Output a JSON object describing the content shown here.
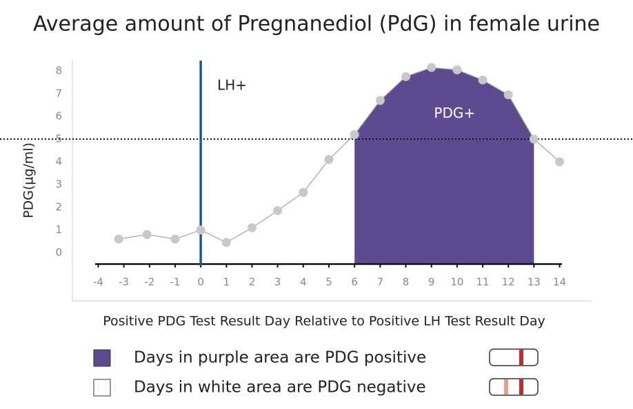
{
  "chart_data": {
    "type": "line",
    "title": "Average amount of Pregnanediol (PdG) in female urine",
    "x_label": "Positive PDG Test Result Day Relative to Positive LH Test Result Day",
    "y_label": "PDG(µg/ml)",
    "x": [
      -3.2,
      -2.1,
      -1,
      0,
      1,
      2,
      3,
      4,
      5,
      6,
      7,
      8,
      9,
      10,
      11,
      12,
      13,
      14
    ],
    "series": [
      {
        "color": "#aaaaaa",
        "marker_color": "#c8c8c8",
        "values": [
          0.6,
          0.8,
          0.6,
          1.0,
          0.45,
          1.1,
          1.85,
          2.65,
          4.1,
          5.2,
          6.7,
          7.75,
          8.15,
          8.05,
          7.6,
          6.95,
          5.0,
          4.0
        ]
      }
    ],
    "xlim": [
      -4.2,
      14.2
    ],
    "xticks": [
      -4,
      -3,
      -2,
      -1,
      0,
      1,
      2,
      3,
      4,
      5,
      6,
      7,
      8,
      9,
      10,
      11,
      12,
      13,
      14
    ],
    "ylim": [
      -0.5,
      8.5
    ],
    "yticks": [
      0,
      1,
      2,
      3,
      4,
      5,
      6,
      7,
      8
    ],
    "threshold": 5,
    "marker_x": 0,
    "marker_color": "#1a5c91",
    "marker_label": "LH+",
    "shaded_range": [
      6,
      13
    ],
    "shaded_color": "#5e4b8f",
    "shaded_label": "PDG+",
    "legend_items": [
      {
        "label": "Days in purple area are PDG positive",
        "color": "#5e4b8f"
      },
      {
        "label": "Days in white area are PDG negative",
        "color": "#ffffff"
      }
    ]
  }
}
